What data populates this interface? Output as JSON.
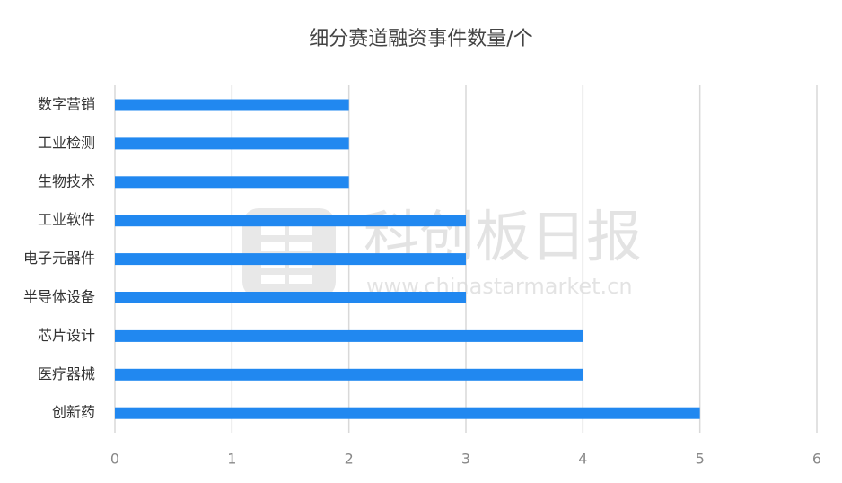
{
  "chart_data": {
    "type": "bar",
    "orientation": "horizontal",
    "title": "细分赛道融资事件数量/个",
    "categories": [
      "数字营销",
      "工业检测",
      "生物技术",
      "工业软件",
      "电子元器件",
      "半导体设备",
      "芯片设计",
      "医疗器械",
      "创新药"
    ],
    "values": [
      2,
      2,
      2,
      3,
      3,
      3,
      4,
      4,
      5
    ],
    "color": "#2188f0",
    "xlim": [
      0,
      6
    ],
    "xticks": [
      0,
      1,
      2,
      3,
      4,
      5,
      6
    ],
    "grid": true
  },
  "watermark": {
    "title": "科创板日报",
    "url": "www.chinastarmarket.cn"
  }
}
